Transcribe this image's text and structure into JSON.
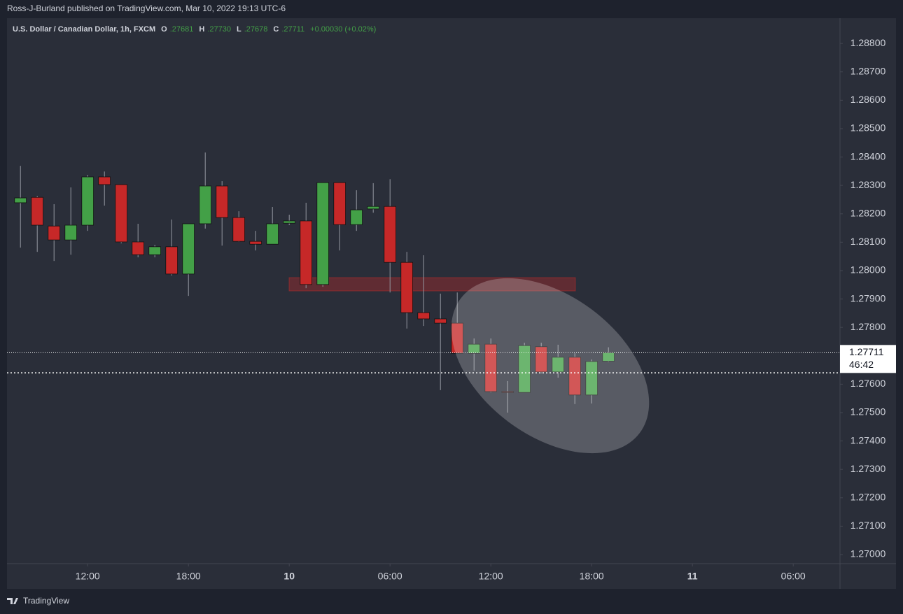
{
  "chart_data": {
    "type": "candlestick",
    "attribution": "Ross-J-Burland published on TradingView.com, Mar 10, 2022 19:13 UTC-6",
    "title": "U.S. Dollar / Canadian Dollar, 1h, FXCM",
    "ohlc_legend": [
      {
        "key": "O",
        "value": ".27681"
      },
      {
        "key": "H",
        "value": ".27730"
      },
      {
        "key": "L",
        "value": ".27678"
      },
      {
        "key": "C",
        "value": ".27711"
      }
    ],
    "change": "+0.00030 (+0.02%)",
    "footer": "TradingView",
    "up_color": "#43a047",
    "down_color": "#c62828",
    "x": [
      "2022-03-09 08:00",
      "2022-03-09 09:00",
      "2022-03-09 10:00",
      "2022-03-09 11:00",
      "2022-03-09 12:00",
      "2022-03-09 13:00",
      "2022-03-09 14:00",
      "2022-03-09 15:00",
      "2022-03-09 16:00",
      "2022-03-09 17:00",
      "2022-03-09 18:00",
      "2022-03-09 19:00",
      "2022-03-09 20:00",
      "2022-03-09 21:00",
      "2022-03-09 22:00",
      "2022-03-09 23:00",
      "2022-03-10 00:00",
      "2022-03-10 01:00",
      "2022-03-10 02:00",
      "2022-03-10 03:00",
      "2022-03-10 04:00",
      "2022-03-10 05:00",
      "2022-03-10 06:00",
      "2022-03-10 07:00",
      "2022-03-10 08:00",
      "2022-03-10 09:00",
      "2022-03-10 10:00",
      "2022-03-10 11:00",
      "2022-03-10 12:00",
      "2022-03-10 13:00",
      "2022-03-10 14:00",
      "2022-03-10 15:00",
      "2022-03-10 16:00",
      "2022-03-10 17:00",
      "2022-03-10 18:00",
      "2022-03-10 19:00"
    ],
    "open": [
      1.28239,
      1.28258,
      1.28157,
      1.28108,
      1.2816,
      1.2833,
      1.28303,
      1.28101,
      1.28056,
      1.28084,
      1.27988,
      1.28165,
      1.28298,
      1.28187,
      1.28103,
      1.28093,
      1.28167,
      1.28175,
      1.27951,
      1.2831,
      1.28162,
      1.28217,
      1.28226,
      1.28029,
      1.27852,
      1.2783,
      1.27815,
      1.27709,
      1.27741,
      1.27574,
      1.27571,
      1.27732,
      1.27643,
      1.27695,
      1.27562,
      1.27681
    ],
    "high": [
      1.28369,
      1.28263,
      1.28234,
      1.28293,
      1.28337,
      1.28349,
      1.28303,
      1.28165,
      1.28091,
      1.2818,
      1.28165,
      1.28416,
      1.28315,
      1.28209,
      1.2814,
      1.28224,
      1.28197,
      1.28239,
      1.2831,
      1.2831,
      1.28283,
      1.28308,
      1.28322,
      1.28066,
      1.28054,
      1.27919,
      1.27923,
      1.27761,
      1.27761,
      1.27611,
      1.27746,
      1.27746,
      1.27739,
      1.27709,
      1.27687,
      1.2773
    ],
    "low": [
      1.28081,
      1.28066,
      1.28034,
      1.28056,
      1.2814,
      1.28229,
      1.28096,
      1.28047,
      1.28047,
      1.27983,
      1.27911,
      1.28148,
      1.28088,
      1.28101,
      1.28071,
      1.28093,
      1.2816,
      1.27938,
      1.27943,
      1.28071,
      1.2814,
      1.28204,
      1.27923,
      1.27796,
      1.27805,
      1.27579,
      1.27709,
      1.27648,
      1.27571,
      1.275,
      1.27571,
      1.27638,
      1.27623,
      1.2753,
      1.27532,
      1.27678
    ],
    "close": [
      1.28256,
      1.2816,
      1.28108,
      1.2816,
      1.2833,
      1.28303,
      1.28101,
      1.28056,
      1.28084,
      1.27988,
      1.28165,
      1.28298,
      1.28187,
      1.28103,
      1.28093,
      1.28165,
      1.28175,
      1.27951,
      1.2831,
      1.28162,
      1.28214,
      1.28226,
      1.28029,
      1.27852,
      1.2783,
      1.27815,
      1.27709,
      1.27741,
      1.27574,
      1.27571,
      1.27736,
      1.27643,
      1.27695,
      1.27562,
      1.2768,
      1.27711
    ],
    "xlim": [
      "2022-03-09 07:12",
      "2022-03-11 08:47"
    ],
    "xticks": [
      {
        "value": "2022-03-09 12:00",
        "label": "12:00"
      },
      {
        "value": "2022-03-09 18:00",
        "label": "18:00"
      },
      {
        "value": "2022-03-10 00:00",
        "label": "10"
      },
      {
        "value": "2022-03-10 06:00",
        "label": "06:00"
      },
      {
        "value": "2022-03-10 12:00",
        "label": "12:00"
      },
      {
        "value": "2022-03-10 18:00",
        "label": "18:00"
      },
      {
        "value": "2022-03-11 00:00",
        "label": "11"
      },
      {
        "value": "2022-03-11 06:00",
        "label": "06:00"
      }
    ],
    "ylim": [
      1.26968,
      1.28889
    ],
    "yticks": [
      {
        "value": 1.27,
        "label": "1.27000"
      },
      {
        "value": 1.271,
        "label": "1.27100"
      },
      {
        "value": 1.272,
        "label": "1.27200"
      },
      {
        "value": 1.273,
        "label": "1.27300"
      },
      {
        "value": 1.274,
        "label": "1.27400"
      },
      {
        "value": 1.275,
        "label": "1.27500"
      },
      {
        "value": 1.276,
        "label": "1.27600"
      },
      {
        "value": 1.278,
        "label": "1.27800"
      },
      {
        "value": 1.279,
        "label": "1.27900"
      },
      {
        "value": 1.28,
        "label": "1.28000"
      },
      {
        "value": 1.281,
        "label": "1.28100"
      },
      {
        "value": 1.282,
        "label": "1.28200"
      },
      {
        "value": 1.283,
        "label": "1.28300"
      },
      {
        "value": 1.284,
        "label": "1.28400"
      },
      {
        "value": 1.285,
        "label": "1.28500"
      },
      {
        "value": 1.286,
        "label": "1.28600"
      },
      {
        "value": 1.287,
        "label": "1.28700"
      },
      {
        "value": 1.288,
        "label": "1.28800"
      }
    ],
    "last_price": {
      "value": 1.27711,
      "label": "1.27711"
    },
    "countdown": "46:42",
    "horizontal_line": 1.2764
  }
}
